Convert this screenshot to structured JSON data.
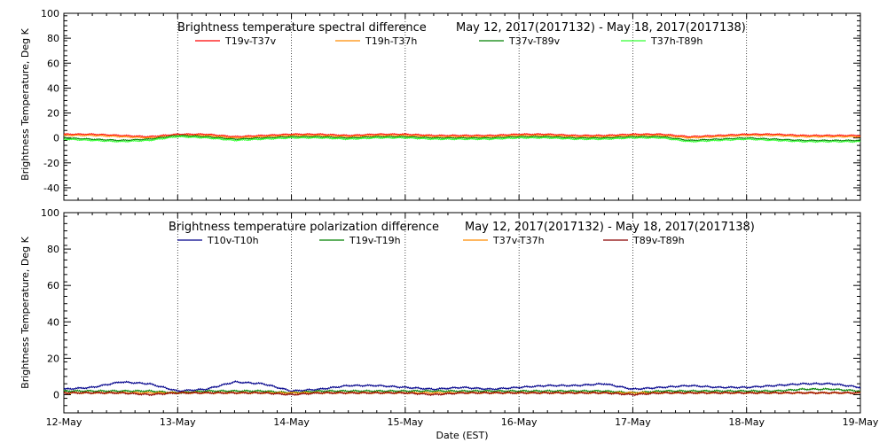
{
  "chart_data": [
    {
      "type": "line",
      "title": "Brightness temperature spectral difference",
      "date_range": "May 12, 2017(2017132) - May 18, 2017(2017138)",
      "ylabel": "Brightness Temperature, Deg K",
      "xlabel": "",
      "ylim": [
        -50,
        100
      ],
      "yticks": [
        -40,
        -20,
        0,
        20,
        40,
        60,
        80,
        100
      ],
      "ytick_labels": [
        "-40",
        "-20",
        "0",
        "20",
        "40",
        "60",
        "80",
        "100"
      ],
      "xlim": [
        0,
        7
      ],
      "x_units": "days since 12-May",
      "grid": "vertical dotted at day boundaries",
      "legend": "top, horizontal",
      "series": [
        {
          "name": "T19v-T37v",
          "color": "#ff0000",
          "x": [
            0,
            0.25,
            0.5,
            0.75,
            1,
            1.25,
            1.5,
            1.75,
            2,
            2.25,
            2.5,
            2.75,
            3,
            3.25,
            3.5,
            3.75,
            4,
            4.25,
            4.5,
            4.75,
            5,
            5.25,
            5.5,
            5.75,
            6,
            6.25,
            6.5,
            6.75,
            7
          ],
          "y": [
            3,
            3,
            2,
            1,
            3,
            3,
            1,
            2,
            3,
            3,
            2,
            3,
            3,
            2,
            2,
            2,
            3,
            3,
            2,
            2,
            3,
            3,
            1,
            2,
            3,
            3,
            2,
            2,
            2
          ]
        },
        {
          "name": "T19h-T37h",
          "color": "#ff8c00",
          "x": [
            0,
            0.25,
            0.5,
            0.75,
            1,
            1.25,
            1.5,
            1.75,
            2,
            2.25,
            2.5,
            2.75,
            3,
            3.25,
            3.5,
            3.75,
            4,
            4.25,
            4.5,
            4.75,
            5,
            5.25,
            5.5,
            5.75,
            6,
            6.25,
            6.5,
            6.75,
            7
          ],
          "y": [
            2,
            2,
            1,
            0,
            2,
            2,
            0,
            1,
            2,
            2,
            1,
            2,
            2,
            1,
            1,
            1,
            2,
            2,
            1,
            1,
            2,
            2,
            0,
            1,
            2,
            2,
            1,
            1,
            1
          ]
        },
        {
          "name": "T37v-T89v",
          "color": "#008000",
          "x": [
            0,
            0.25,
            0.5,
            0.75,
            1,
            1.25,
            1.5,
            1.75,
            2,
            2.25,
            2.5,
            2.75,
            3,
            3.25,
            3.5,
            3.75,
            4,
            4.25,
            4.5,
            4.75,
            5,
            5.25,
            5.5,
            5.75,
            6,
            6.25,
            6.5,
            6.75,
            7
          ],
          "y": [
            0,
            -1,
            -2,
            -1,
            2,
            1,
            -1,
            0,
            1,
            1,
            0,
            1,
            1,
            0,
            0,
            0,
            1,
            1,
            0,
            0,
            1,
            1,
            -2,
            -1,
            0,
            -1,
            -2,
            -2,
            -2
          ]
        },
        {
          "name": "T37h-T89h",
          "color": "#33ff33",
          "x": [
            0,
            0.25,
            0.5,
            0.75,
            1,
            1.25,
            1.5,
            1.75,
            2,
            2.25,
            2.5,
            2.75,
            3,
            3.25,
            3.5,
            3.75,
            4,
            4.25,
            4.5,
            4.75,
            5,
            5.25,
            5.5,
            5.75,
            6,
            6.25,
            6.5,
            6.75,
            7
          ],
          "y": [
            -1,
            -2,
            -3,
            -2,
            1,
            0,
            -2,
            -1,
            0,
            0,
            -1,
            0,
            0,
            -1,
            -1,
            -1,
            0,
            0,
            -1,
            -1,
            0,
            0,
            -3,
            -2,
            -1,
            -2,
            -3,
            -3,
            -3
          ]
        }
      ]
    },
    {
      "type": "line",
      "title": "Brightness temperature polarization difference",
      "date_range": "May 12, 2017(2017132) - May 18, 2017(2017138)",
      "ylabel": "Brightness Temperature, Deg K",
      "xlabel": "Date (EST)",
      "ylim": [
        -10,
        100
      ],
      "yticks": [
        0,
        20,
        40,
        60,
        80,
        100
      ],
      "ytick_labels": [
        "0",
        "20",
        "40",
        "60",
        "80",
        "100"
      ],
      "xlim": [
        0,
        7
      ],
      "x_units": "days since 12-May",
      "categories": [
        "12-May",
        "13-May",
        "14-May",
        "15-May",
        "16-May",
        "17-May",
        "18-May",
        "19-May"
      ],
      "grid": "vertical dotted at day boundaries",
      "legend": "top, horizontal",
      "series": [
        {
          "name": "T10v-T10h",
          "color": "#00008b",
          "x": [
            0,
            0.25,
            0.5,
            0.75,
            1,
            1.25,
            1.5,
            1.75,
            2,
            2.25,
            2.5,
            2.75,
            3,
            3.25,
            3.5,
            3.75,
            4,
            4.25,
            4.5,
            4.75,
            5,
            5.25,
            5.5,
            5.75,
            6,
            6.25,
            6.5,
            6.75,
            7
          ],
          "y": [
            3,
            4,
            7,
            6,
            2,
            3,
            7,
            6,
            2,
            3,
            5,
            5,
            4,
            3,
            4,
            3,
            4,
            5,
            5,
            6,
            3,
            4,
            5,
            4,
            4,
            5,
            6,
            6,
            4
          ]
        },
        {
          "name": "T19v-T19h",
          "color": "#008000",
          "x": [
            0,
            0.25,
            0.5,
            0.75,
            1,
            1.25,
            1.5,
            1.75,
            2,
            2.25,
            2.5,
            2.75,
            3,
            3.25,
            3.5,
            3.75,
            4,
            4.25,
            4.5,
            4.75,
            5,
            5.25,
            5.5,
            5.75,
            6,
            6.25,
            6.5,
            6.75,
            7
          ],
          "y": [
            2,
            2,
            2,
            2,
            1,
            2,
            2,
            2,
            1,
            2,
            2,
            2,
            2,
            2,
            2,
            2,
            2,
            2,
            2,
            2,
            1,
            2,
            2,
            2,
            2,
            2,
            3,
            3,
            2
          ]
        },
        {
          "name": "T37v-T37h",
          "color": "#ff8c00",
          "x": [
            0,
            0.25,
            0.5,
            0.75,
            1,
            1.25,
            1.5,
            1.75,
            2,
            2.25,
            2.5,
            2.75,
            3,
            3.25,
            3.5,
            3.75,
            4,
            4.25,
            4.5,
            4.75,
            5,
            5.25,
            5.5,
            5.75,
            6,
            6.25,
            6.5,
            6.75,
            7
          ],
          "y": [
            1,
            1,
            1,
            1,
            1,
            1,
            1,
            1,
            1,
            1,
            1,
            1,
            1,
            1,
            1,
            1,
            1,
            1,
            1,
            1,
            1,
            1,
            1,
            1,
            1,
            1,
            1,
            1,
            1
          ]
        },
        {
          "name": "T89v-T89h",
          "color": "#8b0000",
          "x": [
            0,
            0.25,
            0.5,
            0.75,
            1,
            1.25,
            1.5,
            1.75,
            2,
            2.25,
            2.5,
            2.75,
            3,
            3.25,
            3.5,
            3.75,
            4,
            4.25,
            4.5,
            4.75,
            5,
            5.25,
            5.5,
            5.75,
            6,
            6.25,
            6.5,
            6.75,
            7
          ],
          "y": [
            1,
            1,
            1,
            0,
            1,
            1,
            1,
            1,
            0,
            1,
            1,
            1,
            1,
            0,
            1,
            1,
            1,
            1,
            1,
            1,
            0,
            1,
            1,
            1,
            1,
            1,
            1,
            1,
            1
          ]
        }
      ]
    }
  ]
}
